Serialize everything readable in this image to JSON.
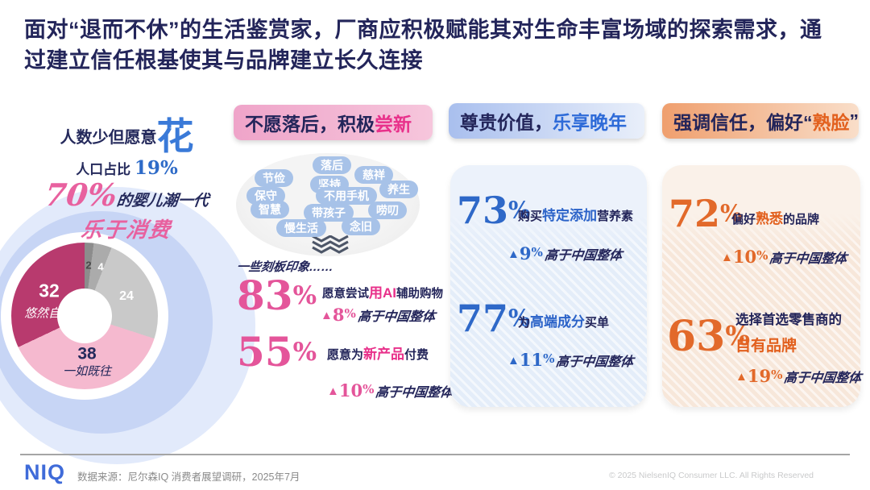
{
  "title": "面对“退而不休”的生活鉴赏家，厂商应积极赋能其对生命丰富场域的探索需求，通过建立信任根基使其与品牌建立长久连接",
  "hero": {
    "line1_prefix": "人数少但愿意",
    "line1_highlight": "花",
    "line2_prefix": "人口占比 ",
    "line2_value": "19%",
    "line3_value": "70%",
    "line3_suffix": "的婴儿潮一代",
    "line4": "乐于消费"
  },
  "chart_data": {
    "type": "pie",
    "title": "",
    "legend_position": "none",
    "slices": [
      {
        "label": "",
        "value": 2,
        "color": "#8C8C8C"
      },
      {
        "label": "",
        "value": 4,
        "color": "#ABABAB"
      },
      {
        "label": "",
        "value": 24,
        "color": "#C9C9C9"
      },
      {
        "label": "一如既往",
        "value": 38,
        "color": "#F5B9CF"
      },
      {
        "label": "悠然自若",
        "value": 32,
        "color": "#B83A6E"
      }
    ]
  },
  "column1": {
    "header": {
      "prefix": "不愿落后，积极",
      "highlight": "尝新",
      "suffix": ""
    },
    "cloud_words": [
      "落后",
      "慈祥",
      "节俭",
      "坚持",
      "养生",
      "保守",
      "不用手机",
      "智慧",
      "带孩子",
      "唠叨",
      "慢生活",
      "念旧"
    ],
    "cloud_caption": "一些刻板印象……",
    "stats": [
      {
        "value": "83%",
        "pre": "愿意尝试",
        "hl": "用AI",
        "post": "辅助购物",
        "delta": "8%",
        "note": "高于中国整体"
      },
      {
        "value": "55%",
        "pre": "愿意为",
        "hl": "新产品",
        "post": "付费",
        "delta": "10%",
        "note": "高于中国整体"
      }
    ]
  },
  "column2": {
    "header": {
      "prefix": "尊贵价值，",
      "highlight": "乐享晚年",
      "suffix": ""
    },
    "stats": [
      {
        "value": "73%",
        "pre": "购买",
        "hl": "特定添加",
        "post": "营养素",
        "delta": "9%",
        "note": "高于中国整体"
      },
      {
        "value": "77%",
        "pre": "为",
        "hl": "高端成分",
        "post": "买单",
        "delta": "11%",
        "note": "高于中国整体"
      }
    ]
  },
  "column3": {
    "header": {
      "prefix": "强调信任，偏好“",
      "highlight": "熟脸",
      "suffix": "”"
    },
    "stats": [
      {
        "value": "72%",
        "pre": "偏好",
        "hl": "熟悉",
        "post": "的品牌",
        "delta": "10%",
        "note": "高于中国整体"
      },
      {
        "value": "63%",
        "pre": "选择首选零售商的",
        "hl": "自有品牌",
        "post": "",
        "delta": "19%",
        "note": "高于中国整体"
      }
    ]
  },
  "footer": {
    "logo": "NIQ",
    "source": "数据来源：尼尔森IQ 消费者展望调研，2025年7月",
    "copyright": "© 2025 NielsenIQ Consumer LLC. All Rights Reserved"
  },
  "icons": {
    "up_arrow": "▲"
  },
  "colors": {
    "navy": "#23255A",
    "pink": "#E4559A",
    "magenta": "#E8308A",
    "blue": "#2E68C8",
    "orange": "#E2692A",
    "donut_magenta": "#B83A6E",
    "donut_pink": "#F5B9CF",
    "ring_blue": "#C7D5F5",
    "niq_blue": "#3F6BD9"
  }
}
